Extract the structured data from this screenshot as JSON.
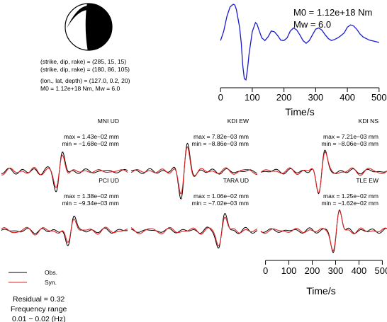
{
  "focal": {
    "plane1": "(strike, dip, rake) = (285, 15, 15)",
    "plane2": "(strike, dip, rake) = (180, 86, 105)",
    "location": "(lon., lat, depth) = (127.0, 0.2, 20)",
    "moment": "M0 = 1.12e+18 Nm, Mw = 6.0"
  },
  "stf": {
    "m0_label": "M0 = 1.12e+18 Nm",
    "mw_label": "Mw = 6.0",
    "color": "#1a1acc"
  },
  "legend": {
    "obs": "Obs.",
    "syn": "Syn.",
    "obs_color": "#000000",
    "syn_color": "#e02020"
  },
  "summary": {
    "residual": "Residual = 0.32",
    "freq_title": "Frequency range",
    "freq_range": "0.01 − 0.02 (Hz)"
  },
  "traces": [
    {
      "title": "MNI UD",
      "max": "max = 1.43e−02 mm",
      "min": "min = −1.68e−02 mm"
    },
    {
      "title": "KDI EW",
      "max": "max = 7.82e−03 mm",
      "min": "min = −8.86e−03 mm"
    },
    {
      "title": "KDI NS",
      "max": "max = 7.21e−03 mm",
      "min": "min = −8.06e−03 mm"
    },
    {
      "title": "PCI UD",
      "max": "max = 1.38e−02 mm",
      "min": "min = −9.34e−03 mm"
    },
    {
      "title": "TARA UD",
      "max": "max = 1.06e−02 mm",
      "min": "min = −7.02e−03 mm"
    },
    {
      "title": "TLE EW",
      "max": "max = 1.25e−02 mm",
      "min": "min = −1.62e−02 mm"
    }
  ],
  "chart_data": [
    {
      "type": "line",
      "title": "",
      "xlabel": "Time/s",
      "ylabel": "",
      "xlim": [
        -25,
        525
      ],
      "xticks": [
        0,
        100,
        200,
        300,
        400,
        500
      ],
      "series": [
        {
          "x": [
            0,
            10,
            20,
            30,
            40,
            45,
            50,
            60,
            65,
            70,
            75,
            80,
            85,
            90,
            100,
            110,
            115,
            120,
            130,
            140,
            150,
            160,
            170,
            180,
            190,
            200,
            210,
            220,
            230,
            240,
            250,
            260,
            270,
            280,
            290,
            300,
            310,
            320,
            330,
            340,
            350,
            360,
            370,
            380,
            390,
            400,
            410,
            420,
            430,
            440,
            450,
            460,
            470,
            480,
            490,
            500
          ],
          "y": [
            0.05,
            0.3,
            0.68,
            0.93,
            1.0,
            0.98,
            0.86,
            0.4,
            0.0,
            -0.6,
            -0.95,
            -0.98,
            -0.7,
            -0.3,
            0.28,
            0.52,
            0.48,
            0.35,
            0.12,
            0.05,
            0.15,
            0.3,
            0.28,
            0.18,
            0.06,
            0.05,
            0.12,
            0.3,
            0.38,
            0.33,
            0.2,
            0.05,
            -0.02,
            0.05,
            0.2,
            0.35,
            0.38,
            0.32,
            0.2,
            0.1,
            0.05,
            0.08,
            0.12,
            0.18,
            0.25,
            0.4,
            0.46,
            0.43,
            0.34,
            0.22,
            0.14,
            0.1,
            0.06,
            0.04,
            0.02,
            0.0
          ]
        }
      ]
    },
    {
      "type": "line",
      "title": "",
      "xlabel": "Time/s",
      "xlim": [
        -20,
        520
      ],
      "xticks": [
        0,
        100,
        200,
        300,
        400,
        500
      ]
    }
  ]
}
